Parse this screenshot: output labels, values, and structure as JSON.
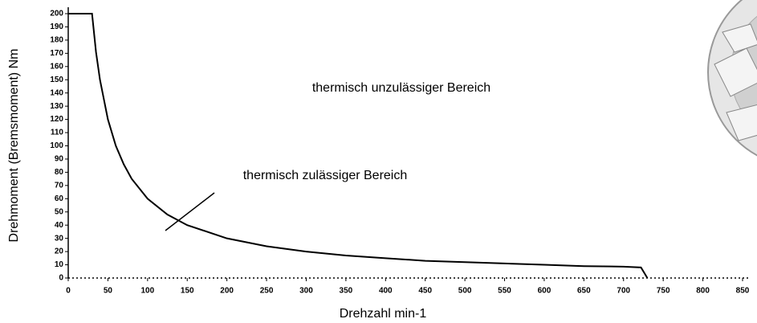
{
  "chart_data": {
    "type": "line",
    "x_label": "Drehzahl min-1",
    "y_label": "Drehmoment (Bremsmoment) Nm",
    "annotations": [
      "thermisch unzulässiger Bereich",
      "thermisch zulässiger Bereich"
    ],
    "x": [
      0,
      28,
      30,
      35,
      40,
      50,
      60,
      70,
      80,
      100,
      125,
      150,
      200,
      250,
      300,
      350,
      400,
      450,
      500,
      550,
      600,
      650,
      700,
      722,
      730
    ],
    "series": [
      {
        "color": "#000000",
        "values": [
          200,
          200,
          200,
          171,
          150,
          120,
          100,
          86,
          75,
          60,
          48,
          40,
          30,
          24,
          20,
          17,
          15,
          13,
          12,
          11,
          10,
          9,
          8.6,
          8,
          0
        ]
      }
    ],
    "xlim": [
      0,
      850
    ],
    "xticks": [
      0,
      50,
      100,
      150,
      200,
      250,
      300,
      350,
      400,
      450,
      500,
      550,
      600,
      650,
      700,
      750,
      800,
      850
    ],
    "ylim": [
      0,
      200
    ],
    "yticks": [
      0,
      10,
      20,
      30,
      40,
      50,
      60,
      70,
      80,
      90,
      100,
      110,
      120,
      130,
      140,
      150,
      160,
      170,
      180,
      190,
      200
    ]
  }
}
